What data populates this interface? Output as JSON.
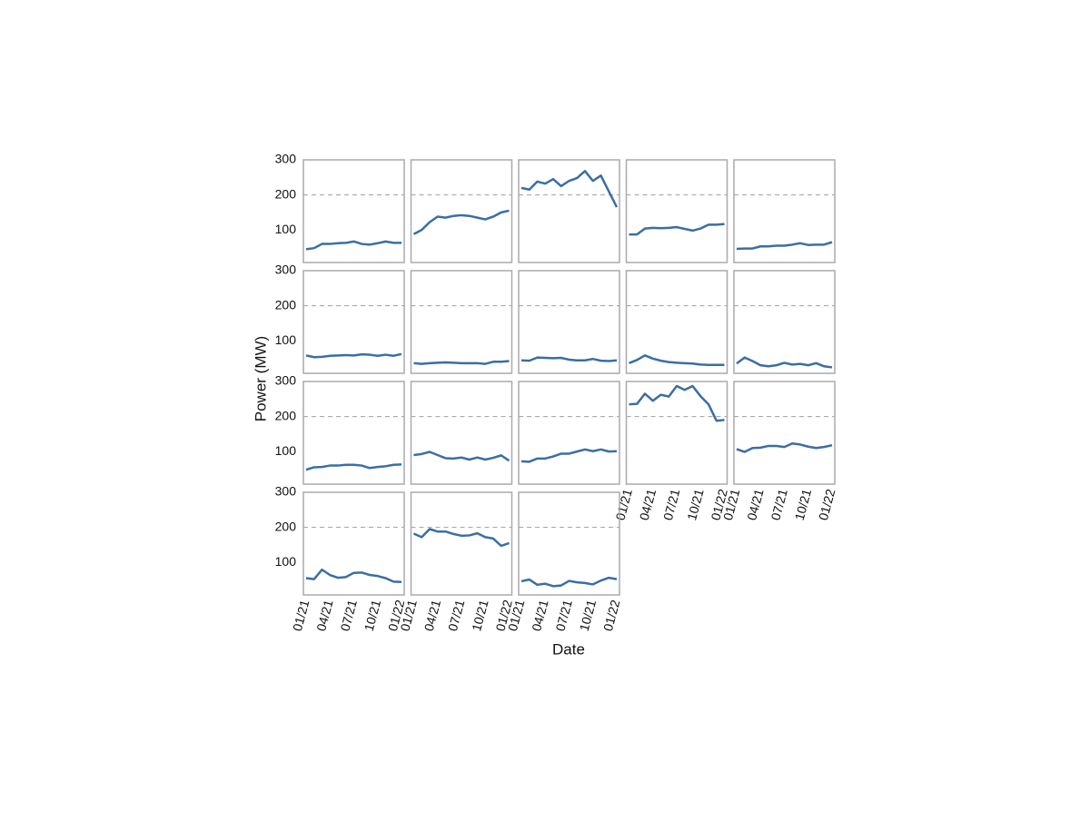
{
  "chart_data": {
    "type": "line",
    "xlabel": "Date",
    "ylabel": "Power (MW)",
    "x": [
      "01/21",
      "02/21",
      "03/21",
      "04/21",
      "05/21",
      "06/21",
      "07/21",
      "08/21",
      "09/21",
      "10/21",
      "11/21",
      "12/21",
      "01/22"
    ],
    "xticks": [
      "01/21",
      "04/21",
      "07/21",
      "10/21",
      "01/22"
    ],
    "ylim": [
      7,
      300
    ],
    "yticks": [
      100,
      200,
      300
    ],
    "hline": 200,
    "color": "#3a6ea5",
    "columns": 5,
    "panels": [
      [
        45,
        48,
        60,
        60,
        62,
        63,
        67,
        60,
        58,
        62,
        67,
        63,
        63
      ],
      [
        88,
        100,
        122,
        138,
        135,
        140,
        142,
        140,
        135,
        130,
        138,
        150,
        155
      ],
      [
        220,
        215,
        238,
        232,
        245,
        225,
        240,
        248,
        268,
        240,
        255,
        210,
        165
      ],
      [
        87,
        87,
        104,
        106,
        105,
        106,
        108,
        103,
        98,
        104,
        115,
        115,
        117
      ],
      [
        46,
        47,
        47,
        53,
        53,
        55,
        55,
        58,
        62,
        57,
        58,
        58,
        65
      ],
      [
        58,
        53,
        54,
        57,
        58,
        59,
        58,
        61,
        60,
        57,
        60,
        57,
        62
      ],
      [
        36,
        34,
        36,
        37,
        38,
        37,
        36,
        36,
        36,
        34,
        40,
        40,
        42
      ],
      [
        44,
        43,
        52,
        51,
        50,
        51,
        46,
        44,
        44,
        48,
        43,
        42,
        44
      ],
      [
        36,
        45,
        58,
        49,
        43,
        39,
        37,
        36,
        35,
        32,
        31,
        31,
        31
      ],
      [
        35,
        52,
        42,
        30,
        27,
        30,
        37,
        32,
        34,
        30,
        36,
        27,
        24
      ],
      [
        48,
        55,
        56,
        60,
        60,
        62,
        62,
        60,
        53,
        56,
        58,
        62,
        63
      ],
      [
        90,
        93,
        99,
        90,
        81,
        80,
        83,
        77,
        83,
        77,
        82,
        89,
        74
      ],
      [
        72,
        71,
        80,
        80,
        86,
        94,
        94,
        100,
        106,
        101,
        106,
        100,
        101
      ],
      [
        235,
        236,
        265,
        245,
        262,
        257,
        287,
        276,
        287,
        258,
        235,
        188,
        190
      ],
      [
        107,
        99,
        110,
        111,
        116,
        116,
        113,
        123,
        120,
        114,
        110,
        113,
        118
      ],
      [
        55,
        52,
        79,
        64,
        56,
        58,
        70,
        71,
        64,
        61,
        55,
        45,
        44
      ],
      [
        182,
        172,
        195,
        188,
        188,
        181,
        176,
        177,
        183,
        172,
        168,
        147,
        155
      ],
      [
        46,
        51,
        36,
        39,
        32,
        34,
        47,
        43,
        41,
        37,
        48,
        56,
        52
      ]
    ]
  }
}
